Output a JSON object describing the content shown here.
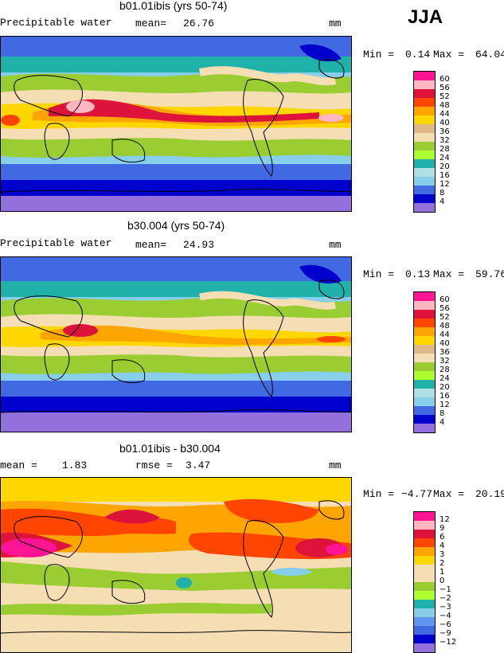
{
  "season": "JJA",
  "panels": [
    {
      "title": "b01.01ibis (yrs 50-74)",
      "left_label": "Precipitable water",
      "mean_label": "mean=",
      "mean_value": "26.76",
      "units": "mm",
      "min_label": "Min =",
      "min_value": "0.14",
      "max_label": "Max =",
      "max_value": "64.04",
      "colorbar": {
        "labels": [
          "60",
          "56",
          "52",
          "48",
          "44",
          "40",
          "36",
          "32",
          "28",
          "24",
          "20",
          "16",
          "12",
          "8",
          "4"
        ],
        "colors": [
          "#ff1493",
          "#ffb6c1",
          "#dc143c",
          "#ff4500",
          "#ffa500",
          "#ffd700",
          "#deb887",
          "#f5deb3",
          "#9acd32",
          "#adff2f",
          "#20b2aa",
          "#b0e0e6",
          "#87ceeb",
          "#4169e1",
          "#0000cd",
          "#9370db"
        ]
      }
    },
    {
      "title": "b30.004 (yrs 50-74)",
      "left_label": "Precipitable water",
      "mean_label": "mean=",
      "mean_value": "24.93",
      "units": "mm",
      "min_label": "Min =",
      "min_value": "0.13",
      "max_label": "Max =",
      "max_value": "59.76",
      "colorbar": {
        "labels": [
          "60",
          "56",
          "52",
          "48",
          "44",
          "40",
          "36",
          "32",
          "28",
          "24",
          "20",
          "16",
          "12",
          "8",
          "4"
        ],
        "colors": [
          "#ff1493",
          "#ffb6c1",
          "#dc143c",
          "#ff4500",
          "#ffa500",
          "#ffd700",
          "#deb887",
          "#f5deb3",
          "#9acd32",
          "#adff2f",
          "#20b2aa",
          "#b0e0e6",
          "#87ceeb",
          "#4169e1",
          "#0000cd",
          "#9370db"
        ]
      }
    },
    {
      "title": "b01.01ibis - b30.004",
      "left_label": "mean =",
      "mean_label": "",
      "mean_value": "1.83",
      "rmse_label": "rmse =",
      "rmse_value": "3.47",
      "units": "mm",
      "min_label": "Min =",
      "min_value": "−4.77",
      "max_label": "Max =",
      "max_value": "20.19",
      "colorbar": {
        "labels": [
          "12",
          "9",
          "6",
          "4",
          "3",
          "2",
          "1",
          "0",
          "−1",
          "−2",
          "−3",
          "−4",
          "−6",
          "−9",
          "−12"
        ],
        "colors": [
          "#ff1493",
          "#ffb6c1",
          "#dc143c",
          "#ff4500",
          "#ffa500",
          "#ffd700",
          "#f5deb3",
          "#f5deb3",
          "#9acd32",
          "#adff2f",
          "#20b2aa",
          "#87ceeb",
          "#6495ed",
          "#4169e1",
          "#0000cd",
          "#9370db"
        ]
      }
    }
  ],
  "colors": {
    "deep_purple": "#9370db",
    "deep_blue": "#0000cd",
    "blue": "#4169e1",
    "light_blue": "#87ceeb",
    "teal": "#20b2aa",
    "green": "#9acd32",
    "tan": "#f5deb3",
    "yellow": "#ffd700",
    "orange": "#ffa500",
    "red": "#dc143c",
    "pink": "#ff1493"
  }
}
